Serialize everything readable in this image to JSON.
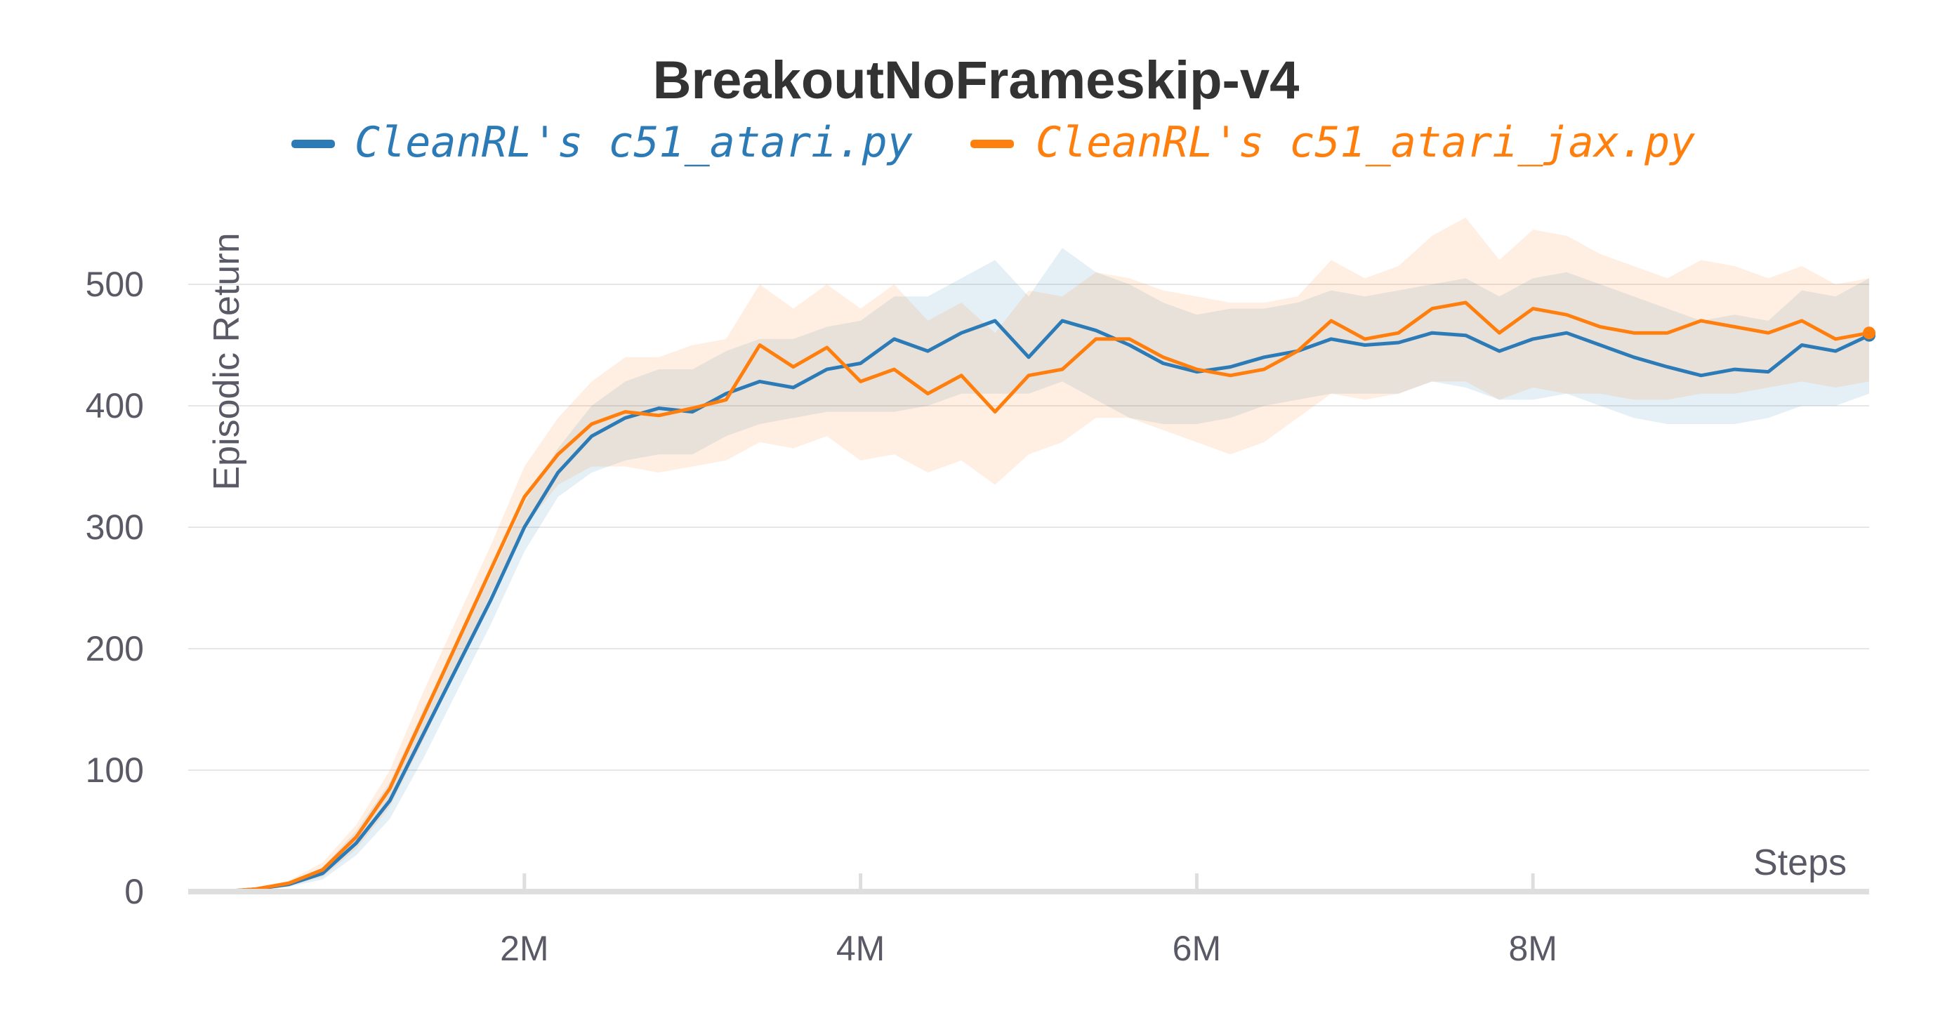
{
  "chart_data": {
    "type": "line",
    "title": "BreakoutNoFrameskip-v4",
    "xlabel": "Steps",
    "ylabel": "Episodic Return",
    "xlim": [
      0,
      10000000
    ],
    "ylim": [
      0,
      560
    ],
    "x_ticks": [
      2000000,
      4000000,
      6000000,
      8000000
    ],
    "x_tick_labels": [
      "2M",
      "4M",
      "6M",
      "8M"
    ],
    "y_ticks": [
      0,
      100,
      200,
      300,
      400,
      500
    ],
    "y_tick_labels": [
      "0",
      "100",
      "200",
      "300",
      "400",
      "500"
    ],
    "grid": true,
    "legend_position": "top",
    "x": [
      0,
      200000,
      400000,
      600000,
      800000,
      1000000,
      1200000,
      1400000,
      1600000,
      1800000,
      2000000,
      2200000,
      2400000,
      2600000,
      2800000,
      3000000,
      3200000,
      3400000,
      3600000,
      3800000,
      4000000,
      4200000,
      4400000,
      4600000,
      4800000,
      5000000,
      5200000,
      5400000,
      5600000,
      5800000,
      6000000,
      6200000,
      6400000,
      6600000,
      6800000,
      7000000,
      7200000,
      7400000,
      7600000,
      7800000,
      8000000,
      8200000,
      8400000,
      8600000,
      8800000,
      9000000,
      9200000,
      9400000,
      9600000,
      9800000,
      10000000
    ],
    "series": [
      {
        "name": "CleanRL's c51_atari.py",
        "color": "#2c7bb6",
        "values": [
          0,
          0,
          2,
          6,
          15,
          40,
          75,
          130,
          185,
          240,
          300,
          345,
          375,
          390,
          398,
          395,
          410,
          420,
          415,
          430,
          435,
          455,
          445,
          460,
          470,
          440,
          470,
          462,
          450,
          435,
          428,
          432,
          440,
          445,
          455,
          450,
          452,
          460,
          458,
          445,
          455,
          460,
          450,
          440,
          432,
          425,
          430,
          428,
          450,
          445,
          458
        ],
        "band_low": [
          0,
          0,
          1,
          4,
          10,
          30,
          60,
          110,
          165,
          220,
          280,
          325,
          345,
          355,
          360,
          360,
          375,
          385,
          390,
          395,
          395,
          395,
          400,
          410,
          410,
          410,
          420,
          405,
          390,
          385,
          385,
          390,
          400,
          405,
          410,
          410,
          410,
          420,
          415,
          405,
          405,
          410,
          400,
          390,
          385,
          385,
          385,
          390,
          400,
          400,
          410
        ],
        "band_high": [
          0,
          1,
          3,
          8,
          20,
          50,
          90,
          150,
          205,
          260,
          320,
          365,
          400,
          420,
          430,
          430,
          445,
          455,
          455,
          465,
          470,
          490,
          490,
          505,
          520,
          490,
          530,
          510,
          500,
          485,
          475,
          480,
          480,
          485,
          495,
          490,
          495,
          500,
          505,
          490,
          505,
          510,
          500,
          490,
          480,
          470,
          475,
          470,
          495,
          490,
          505
        ]
      },
      {
        "name": "CleanRL's c51_atari_jax.py",
        "color": "#ff7f0e",
        "values": [
          0,
          0,
          2,
          7,
          18,
          45,
          85,
          145,
          205,
          265,
          325,
          360,
          385,
          395,
          392,
          398,
          405,
          450,
          432,
          448,
          420,
          430,
          410,
          425,
          395,
          425,
          430,
          455,
          455,
          440,
          430,
          425,
          430,
          445,
          470,
          455,
          460,
          480,
          485,
          460,
          480,
          475,
          465,
          460,
          460,
          470,
          465,
          460,
          470,
          455,
          460
        ],
        "band_low": [
          0,
          0,
          1,
          5,
          12,
          35,
          70,
          125,
          185,
          245,
          300,
          335,
          350,
          350,
          345,
          350,
          355,
          370,
          365,
          375,
          355,
          360,
          345,
          355,
          335,
          360,
          370,
          390,
          390,
          380,
          370,
          360,
          370,
          390,
          410,
          405,
          410,
          420,
          420,
          405,
          415,
          410,
          410,
          405,
          405,
          410,
          410,
          415,
          420,
          415,
          420
        ],
        "band_high": [
          0,
          1,
          3,
          9,
          24,
          55,
          100,
          165,
          225,
          285,
          350,
          390,
          420,
          440,
          440,
          450,
          455,
          500,
          480,
          500,
          480,
          500,
          470,
          485,
          460,
          495,
          490,
          510,
          505,
          495,
          490,
          485,
          485,
          490,
          520,
          505,
          515,
          540,
          555,
          520,
          545,
          540,
          525,
          515,
          505,
          520,
          515,
          505,
          515,
          500,
          505
        ]
      }
    ]
  }
}
